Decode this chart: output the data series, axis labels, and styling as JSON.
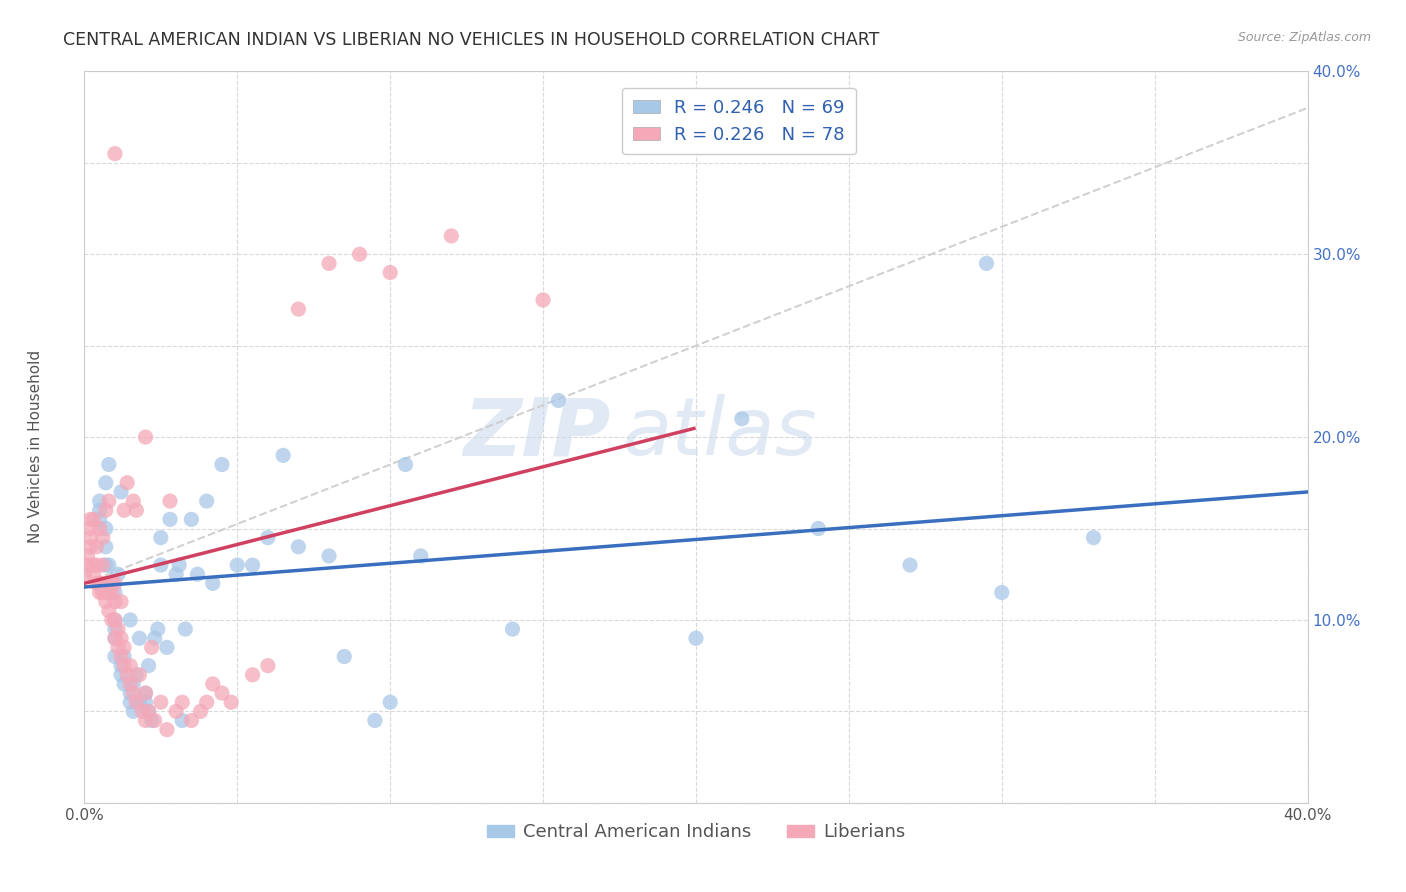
{
  "title": "CENTRAL AMERICAN INDIAN VS LIBERIAN NO VEHICLES IN HOUSEHOLD CORRELATION CHART",
  "source": "Source: ZipAtlas.com",
  "ylabel": "No Vehicles in Household",
  "watermark_zip": "ZIP",
  "watermark_atlas": "atlas",
  "blue_color": "#a8c8e8",
  "pink_color": "#f4a8b8",
  "blue_line_color": "#3a6fbf",
  "pink_line_color": "#d04060",
  "gray_line_color": "#cccccc",
  "blue_R": "0.246",
  "blue_N": "69",
  "pink_R": "0.226",
  "pink_N": "78",
  "xlim": [
    0,
    0.4
  ],
  "ylim": [
    0,
    0.4
  ],
  "background_color": "#ffffff",
  "grid_color": "#d0d0d0",
  "title_fontsize": 12.5,
  "label_fontsize": 11,
  "tick_fontsize": 11,
  "legend_fontsize": 13,
  "source_fontsize": 9,
  "blue_scatter_x": [
    0.005,
    0.005,
    0.005,
    0.007,
    0.007,
    0.007,
    0.007,
    0.008,
    0.008,
    0.008,
    0.01,
    0.01,
    0.01,
    0.01,
    0.01,
    0.011,
    0.012,
    0.012,
    0.012,
    0.013,
    0.013,
    0.015,
    0.015,
    0.015,
    0.016,
    0.016,
    0.017,
    0.018,
    0.018,
    0.02,
    0.02,
    0.021,
    0.021,
    0.022,
    0.023,
    0.024,
    0.025,
    0.025,
    0.027,
    0.028,
    0.03,
    0.031,
    0.032,
    0.033,
    0.035,
    0.037,
    0.04,
    0.042,
    0.045,
    0.05,
    0.055,
    0.06,
    0.065,
    0.07,
    0.08,
    0.085,
    0.095,
    0.1,
    0.105,
    0.11,
    0.14,
    0.155,
    0.2,
    0.215,
    0.24,
    0.27,
    0.295,
    0.3,
    0.33
  ],
  "blue_scatter_y": [
    0.155,
    0.16,
    0.165,
    0.13,
    0.14,
    0.15,
    0.175,
    0.12,
    0.13,
    0.185,
    0.08,
    0.09,
    0.095,
    0.1,
    0.115,
    0.125,
    0.07,
    0.075,
    0.17,
    0.065,
    0.08,
    0.055,
    0.06,
    0.1,
    0.05,
    0.065,
    0.07,
    0.055,
    0.09,
    0.055,
    0.06,
    0.05,
    0.075,
    0.045,
    0.09,
    0.095,
    0.13,
    0.145,
    0.085,
    0.155,
    0.125,
    0.13,
    0.045,
    0.095,
    0.155,
    0.125,
    0.165,
    0.12,
    0.185,
    0.13,
    0.13,
    0.145,
    0.19,
    0.14,
    0.135,
    0.08,
    0.045,
    0.055,
    0.185,
    0.135,
    0.095,
    0.22,
    0.09,
    0.21,
    0.15,
    0.13,
    0.295,
    0.115,
    0.145
  ],
  "pink_scatter_x": [
    0.0,
    0.001,
    0.001,
    0.002,
    0.002,
    0.002,
    0.002,
    0.003,
    0.003,
    0.003,
    0.004,
    0.004,
    0.004,
    0.005,
    0.005,
    0.005,
    0.006,
    0.006,
    0.006,
    0.006,
    0.007,
    0.007,
    0.007,
    0.008,
    0.008,
    0.008,
    0.008,
    0.009,
    0.009,
    0.009,
    0.01,
    0.01,
    0.01,
    0.01,
    0.011,
    0.011,
    0.012,
    0.012,
    0.012,
    0.013,
    0.013,
    0.013,
    0.014,
    0.014,
    0.015,
    0.015,
    0.016,
    0.016,
    0.017,
    0.017,
    0.018,
    0.019,
    0.02,
    0.02,
    0.021,
    0.022,
    0.023,
    0.025,
    0.027,
    0.028,
    0.03,
    0.032,
    0.035,
    0.038,
    0.04,
    0.042,
    0.045,
    0.048,
    0.055,
    0.06,
    0.07,
    0.08,
    0.09,
    0.1,
    0.12,
    0.15,
    0.01,
    0.02
  ],
  "pink_scatter_y": [
    0.125,
    0.13,
    0.135,
    0.14,
    0.145,
    0.15,
    0.155,
    0.125,
    0.13,
    0.155,
    0.12,
    0.13,
    0.14,
    0.115,
    0.12,
    0.15,
    0.115,
    0.12,
    0.13,
    0.145,
    0.11,
    0.115,
    0.16,
    0.105,
    0.115,
    0.12,
    0.165,
    0.1,
    0.115,
    0.12,
    0.09,
    0.1,
    0.11,
    0.12,
    0.085,
    0.095,
    0.08,
    0.09,
    0.11,
    0.075,
    0.085,
    0.16,
    0.07,
    0.175,
    0.065,
    0.075,
    0.06,
    0.165,
    0.055,
    0.16,
    0.07,
    0.05,
    0.045,
    0.06,
    0.05,
    0.085,
    0.045,
    0.055,
    0.04,
    0.165,
    0.05,
    0.055,
    0.045,
    0.05,
    0.055,
    0.065,
    0.06,
    0.055,
    0.07,
    0.075,
    0.27,
    0.295,
    0.3,
    0.29,
    0.31,
    0.275,
    0.355,
    0.2
  ]
}
